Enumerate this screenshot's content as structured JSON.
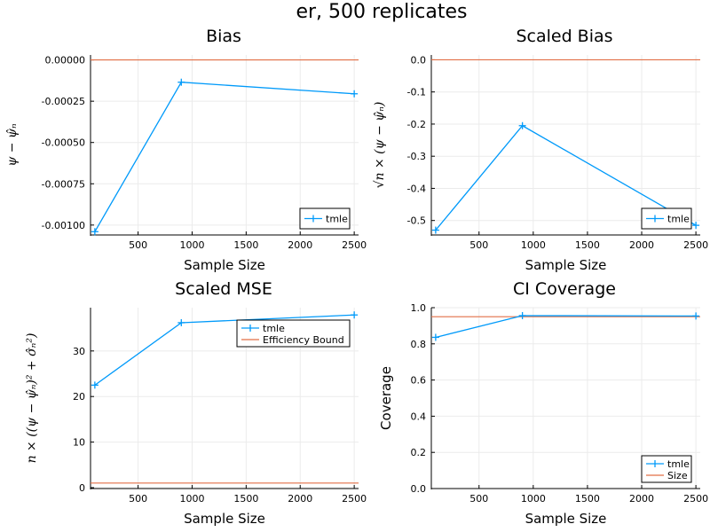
{
  "figure": {
    "title": "er, 500 replicates"
  },
  "colors": {
    "series": "#009AFA",
    "reference": "#E26F46",
    "grid": "#ebebeb",
    "axis": "#000000"
  },
  "chart_data": [
    {
      "type": "line",
      "title": "Bias",
      "xlabel": "Sample Size",
      "ylabel": "ψ − ψ̂ₙ",
      "xlim": [
        60,
        2540
      ],
      "ylim": [
        -0.00106,
        3e-05
      ],
      "xticks": [
        500,
        1000,
        1500,
        2000,
        2500
      ],
      "yticks": [
        0.0,
        -0.00025,
        -0.0005,
        -0.00075,
        -0.001
      ],
      "ytick_labels": [
        "0.00000",
        "-0.00025",
        "-0.00050",
        "-0.00075",
        "-0.00100"
      ],
      "series": [
        {
          "name": "tmle",
          "x": [
            100,
            900,
            2500
          ],
          "y": [
            -0.00104,
            -0.000135,
            -0.000205
          ],
          "marker": "+",
          "color": "#009AFA"
        }
      ],
      "hlines": [
        {
          "y": 0.0,
          "color": "#E26F46"
        }
      ],
      "legend": {
        "position": "bottom-right",
        "entries": [
          "tmle"
        ]
      }
    },
    {
      "type": "line",
      "title": "Scaled Bias",
      "xlabel": "Sample Size",
      "ylabel": "√n × (ψ − ψ̂ₙ)",
      "xlim": [
        60,
        2540
      ],
      "ylim": [
        -0.545,
        0.015
      ],
      "xticks": [
        500,
        1000,
        1500,
        2000,
        2500
      ],
      "yticks": [
        0.0,
        -0.1,
        -0.2,
        -0.3,
        -0.4,
        -0.5
      ],
      "ytick_labels": [
        "0.0",
        "-0.1",
        "-0.2",
        "-0.3",
        "-0.4",
        "-0.5"
      ],
      "series": [
        {
          "name": "tmle",
          "x": [
            100,
            900,
            2500
          ],
          "y": [
            -0.53,
            -0.205,
            -0.515
          ],
          "marker": "+",
          "color": "#009AFA"
        }
      ],
      "hlines": [
        {
          "y": 0.0,
          "color": "#E26F46"
        }
      ],
      "legend": {
        "position": "bottom-right",
        "entries": [
          "tmle"
        ]
      }
    },
    {
      "type": "line",
      "title": "Scaled MSE",
      "xlabel": "Sample Size",
      "ylabel": "n × ((ψ − ψ̂ₙ)² + σ̂ₙ²)",
      "xlim": [
        60,
        2540
      ],
      "ylim": [
        -0.2,
        39.5
      ],
      "xticks": [
        500,
        1000,
        1500,
        2000,
        2500
      ],
      "yticks": [
        0,
        10,
        20,
        30
      ],
      "ytick_labels": [
        "0",
        "10",
        "20",
        "30"
      ],
      "series": [
        {
          "name": "tmle",
          "x": [
            100,
            900,
            2500
          ],
          "y": [
            22.5,
            36.2,
            37.9
          ],
          "marker": "+",
          "color": "#009AFA"
        }
      ],
      "hlines": [
        {
          "y": 1.0,
          "color": "#E26F46",
          "name": "Efficiency Bound"
        }
      ],
      "legend": {
        "position": "top-right",
        "entries": [
          "tmle",
          "Efficiency Bound"
        ]
      }
    },
    {
      "type": "line",
      "title": "CI Coverage",
      "xlabel": "Sample Size",
      "ylabel": "Coverage",
      "xlim": [
        60,
        2540
      ],
      "ylim": [
        0.0,
        1.0
      ],
      "xticks": [
        500,
        1000,
        1500,
        2000,
        2500
      ],
      "yticks": [
        0.0,
        0.2,
        0.4,
        0.6,
        0.8,
        1.0
      ],
      "ytick_labels": [
        "0.0",
        "0.2",
        "0.4",
        "0.6",
        "0.8",
        "1.0"
      ],
      "series": [
        {
          "name": "tmle",
          "x": [
            100,
            900,
            2500
          ],
          "y": [
            0.836,
            0.956,
            0.954
          ],
          "marker": "+",
          "color": "#009AFA"
        }
      ],
      "hlines": [
        {
          "y": 0.95,
          "color": "#E26F46",
          "name": "Size"
        }
      ],
      "legend": {
        "position": "bottom-right",
        "entries": [
          "tmle",
          "Size"
        ]
      }
    }
  ]
}
